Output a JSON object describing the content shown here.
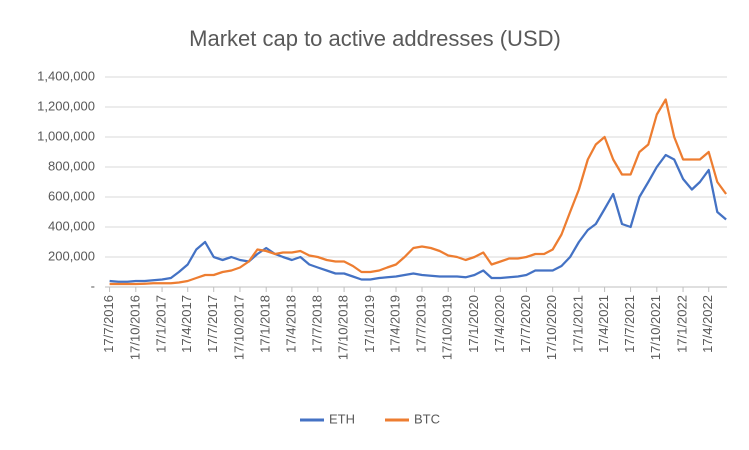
{
  "chart_data": {
    "type": "line",
    "title": "Market cap to active addresses  (USD)",
    "x": [
      "2016-07-17",
      "2016-08-17",
      "2016-09-17",
      "2016-10-17",
      "2016-11-17",
      "2016-12-17",
      "2017-01-17",
      "2017-02-17",
      "2017-03-17",
      "2017-04-17",
      "2017-05-17",
      "2017-06-17",
      "2017-07-17",
      "2017-08-17",
      "2017-09-17",
      "2017-10-17",
      "2017-11-17",
      "2017-12-17",
      "2018-01-17",
      "2018-02-17",
      "2018-03-17",
      "2018-04-17",
      "2018-05-17",
      "2018-06-17",
      "2018-07-17",
      "2018-08-17",
      "2018-09-17",
      "2018-10-17",
      "2018-11-17",
      "2018-12-17",
      "2019-01-17",
      "2019-02-17",
      "2019-03-17",
      "2019-04-17",
      "2019-05-17",
      "2019-06-17",
      "2019-07-17",
      "2019-08-17",
      "2019-09-17",
      "2019-10-17",
      "2019-11-17",
      "2019-12-17",
      "2020-01-17",
      "2020-02-17",
      "2020-03-17",
      "2020-04-17",
      "2020-05-17",
      "2020-06-17",
      "2020-07-17",
      "2020-08-17",
      "2020-09-17",
      "2020-10-17",
      "2020-11-17",
      "2020-12-17",
      "2021-01-17",
      "2021-02-17",
      "2021-03-17",
      "2021-04-17",
      "2021-05-17",
      "2021-06-17",
      "2021-07-17",
      "2021-08-17",
      "2021-09-17",
      "2021-10-17",
      "2021-11-17",
      "2021-12-17",
      "2022-01-17",
      "2022-02-17",
      "2022-03-17",
      "2022-04-17",
      "2022-05-17",
      "2022-06-17"
    ],
    "series": [
      {
        "name": "ETH",
        "color": "#4472c4",
        "values": [
          40000,
          35000,
          35000,
          40000,
          40000,
          45000,
          50000,
          60000,
          100000,
          150000,
          250000,
          300000,
          200000,
          180000,
          200000,
          180000,
          170000,
          220000,
          260000,
          220000,
          200000,
          180000,
          200000,
          150000,
          130000,
          110000,
          90000,
          90000,
          70000,
          50000,
          50000,
          60000,
          65000,
          70000,
          80000,
          90000,
          80000,
          75000,
          70000,
          70000,
          70000,
          65000,
          80000,
          110000,
          60000,
          60000,
          65000,
          70000,
          80000,
          110000,
          110000,
          110000,
          140000,
          200000,
          300000,
          380000,
          420000,
          520000,
          620000,
          420000,
          400000,
          600000,
          700000,
          800000,
          880000,
          850000,
          720000,
          650000,
          700000,
          780000,
          500000,
          450000
        ]
      },
      {
        "name": "BTC",
        "color": "#ed7d31",
        "values": [
          20000,
          20000,
          20000,
          20000,
          22000,
          25000,
          25000,
          25000,
          30000,
          40000,
          60000,
          80000,
          80000,
          100000,
          110000,
          130000,
          170000,
          250000,
          240000,
          220000,
          230000,
          230000,
          240000,
          210000,
          200000,
          180000,
          170000,
          170000,
          140000,
          100000,
          100000,
          110000,
          130000,
          150000,
          200000,
          260000,
          270000,
          260000,
          240000,
          210000,
          200000,
          180000,
          200000,
          230000,
          150000,
          170000,
          190000,
          190000,
          200000,
          220000,
          220000,
          250000,
          350000,
          500000,
          650000,
          850000,
          950000,
          1000000,
          850000,
          750000,
          750000,
          900000,
          950000,
          1150000,
          1250000,
          1000000,
          850000,
          850000,
          850000,
          900000,
          700000,
          620000
        ]
      }
    ],
    "xlim": [
      "2016-07-01",
      "2022-06-20"
    ],
    "xticks": [
      {
        "value": "2016-07-17",
        "label": "17/7/2016"
      },
      {
        "value": "2016-10-17",
        "label": "17/10/2016"
      },
      {
        "value": "2017-01-17",
        "label": "17/1/2017"
      },
      {
        "value": "2017-04-17",
        "label": "17/4/2017"
      },
      {
        "value": "2017-07-17",
        "label": "17/7/2017"
      },
      {
        "value": "2017-10-17",
        "label": "17/10/2017"
      },
      {
        "value": "2018-01-17",
        "label": "17/1/2018"
      },
      {
        "value": "2018-04-17",
        "label": "17/4/2018"
      },
      {
        "value": "2018-07-17",
        "label": "17/7/2018"
      },
      {
        "value": "2018-10-17",
        "label": "17/10/2018"
      },
      {
        "value": "2019-01-17",
        "label": "17/1/2019"
      },
      {
        "value": "2019-04-17",
        "label": "17/4/2019"
      },
      {
        "value": "2019-07-17",
        "label": "17/7/2019"
      },
      {
        "value": "2019-10-17",
        "label": "17/10/2019"
      },
      {
        "value": "2020-01-17",
        "label": "17/1/2020"
      },
      {
        "value": "2020-04-17",
        "label": "17/4/2020"
      },
      {
        "value": "2020-07-17",
        "label": "17/7/2020"
      },
      {
        "value": "2020-10-17",
        "label": "17/10/2020"
      },
      {
        "value": "2021-01-17",
        "label": "17/1/2021"
      },
      {
        "value": "2021-04-17",
        "label": "17/4/2021"
      },
      {
        "value": "2021-07-17",
        "label": "17/7/2021"
      },
      {
        "value": "2021-10-17",
        "label": "17/10/2021"
      },
      {
        "value": "2022-01-17",
        "label": "17/1/2022"
      },
      {
        "value": "2022-04-17",
        "label": "17/4/2022"
      }
    ],
    "ylim": [
      0,
      1400000
    ],
    "yticks": [
      {
        "value": 0,
        "label": "-"
      },
      {
        "value": 200000,
        "label": "200,000"
      },
      {
        "value": 400000,
        "label": "400,000"
      },
      {
        "value": 600000,
        "label": "600,000"
      },
      {
        "value": 800000,
        "label": "800,000"
      },
      {
        "value": 1000000,
        "label": "1,000,000"
      },
      {
        "value": 1200000,
        "label": "1,200,000"
      },
      {
        "value": 1400000,
        "label": "1,400,000"
      }
    ],
    "grid": true,
    "legend": "bottom"
  }
}
